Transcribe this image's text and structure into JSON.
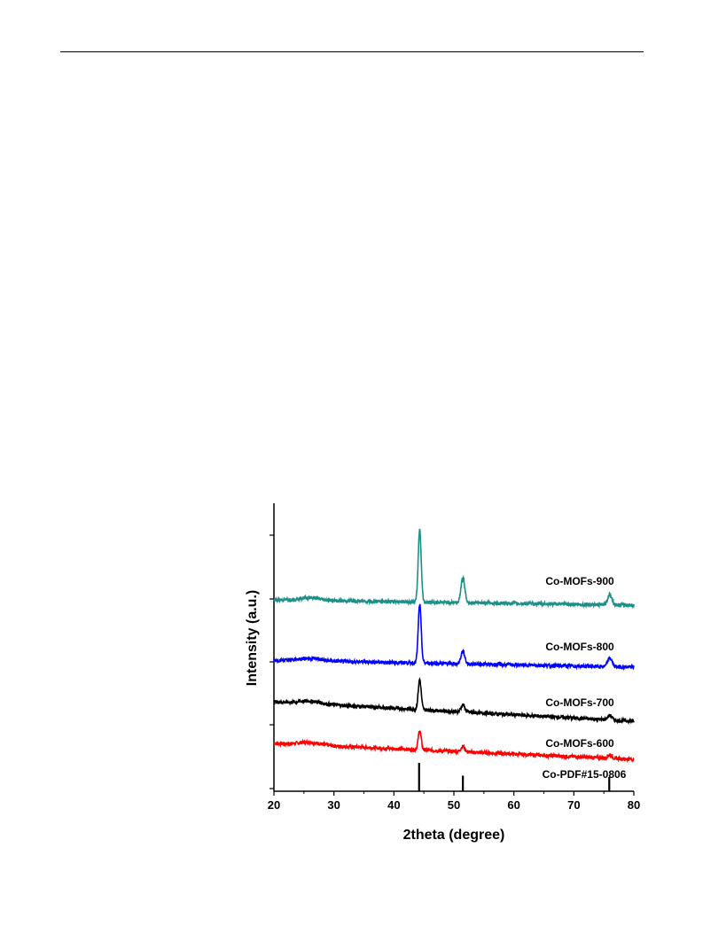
{
  "chart_data": {
    "type": "line",
    "title": "",
    "xlabel": "2theta (degree)",
    "ylabel": "Intensity (a.u.)",
    "xlim": [
      20,
      80
    ],
    "x_ticks": [
      "20",
      "30",
      "40",
      "50",
      "60",
      "70",
      "80"
    ],
    "y_tick_labels": "none",
    "grid": false,
    "legend": "inline labels at right of each trace",
    "reference": {
      "name": "Co-PDF#15-0806",
      "peaks_2theta": [
        44.2,
        51.5,
        75.9
      ],
      "relative_intensity": [
        1.0,
        0.55,
        0.5
      ]
    },
    "series": [
      {
        "name": "Co-MOFs-600",
        "color": "#ff0000",
        "baseline_start": 18,
        "baseline_end": 0,
        "peaks": [
          {
            "x": 44.3,
            "height": 22
          },
          {
            "x": 51.5,
            "height": 6
          },
          {
            "x": 76.0,
            "height": 4
          }
        ]
      },
      {
        "name": "Co-MOFs-700",
        "color": "#000000",
        "baseline_start": 22,
        "baseline_end": 0,
        "peaks": [
          {
            "x": 44.3,
            "height": 34
          },
          {
            "x": 51.5,
            "height": 8
          },
          {
            "x": 76.0,
            "height": 5
          }
        ]
      },
      {
        "name": "Co-MOFs-800",
        "color": "#0000ff",
        "baseline_start": 8,
        "baseline_end": 0,
        "peaks": [
          {
            "x": 44.3,
            "height": 66
          },
          {
            "x": 51.5,
            "height": 14
          },
          {
            "x": 76.0,
            "height": 10
          }
        ]
      },
      {
        "name": "Co-MOFs-900",
        "color": "#1a9088",
        "baseline_start": 6,
        "baseline_end": 0,
        "peaks": [
          {
            "x": 44.3,
            "height": 82
          },
          {
            "x": 51.5,
            "height": 28
          },
          {
            "x": 76.0,
            "height": 12
          }
        ]
      }
    ]
  }
}
